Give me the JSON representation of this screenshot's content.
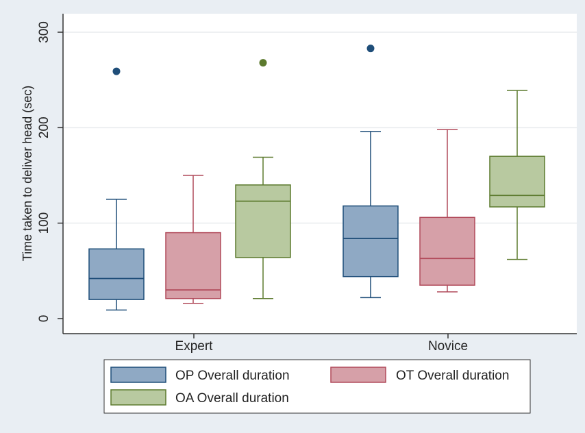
{
  "chart_data": {
    "type": "box",
    "categories": [
      "Expert",
      "Novice"
    ],
    "ylabel": "Time taken to deliver head (sec)",
    "xlabel": "",
    "ylim": [
      0,
      300
    ],
    "yticks": [
      0,
      100,
      200,
      300
    ],
    "grid": true,
    "legend_position": "bottom",
    "series": [
      {
        "name": "OP Overall duration",
        "color": "#8fa9c4",
        "stroke": "#1f4e79",
        "boxes": [
          {
            "category": "Expert",
            "min": 9,
            "q1": 20,
            "median": 42,
            "q3": 73,
            "max": 125,
            "outliers": [
              259
            ]
          },
          {
            "category": "Novice",
            "min": 22,
            "q1": 44,
            "median": 84,
            "q3": 118,
            "max": 196,
            "outliers": [
              283
            ]
          }
        ]
      },
      {
        "name": "OT Overall duration",
        "color": "#d6a0a8",
        "stroke": "#b14a5a",
        "boxes": [
          {
            "category": "Expert",
            "min": 16,
            "q1": 21,
            "median": 30,
            "q3": 90,
            "max": 150,
            "outliers": []
          },
          {
            "category": "Novice",
            "min": 28,
            "q1": 35,
            "median": 63,
            "q3": 106,
            "max": 198,
            "outliers": []
          }
        ]
      },
      {
        "name": "OA Overall duration",
        "color": "#b8c9a0",
        "stroke": "#5c7a2e",
        "boxes": [
          {
            "category": "Expert",
            "min": 21,
            "q1": 64,
            "median": 123,
            "q3": 140,
            "max": 169,
            "outliers": [
              268
            ]
          },
          {
            "category": "Novice",
            "min": 62,
            "q1": 117,
            "median": 129,
            "q3": 170,
            "max": 239,
            "outliers": []
          }
        ]
      }
    ]
  }
}
